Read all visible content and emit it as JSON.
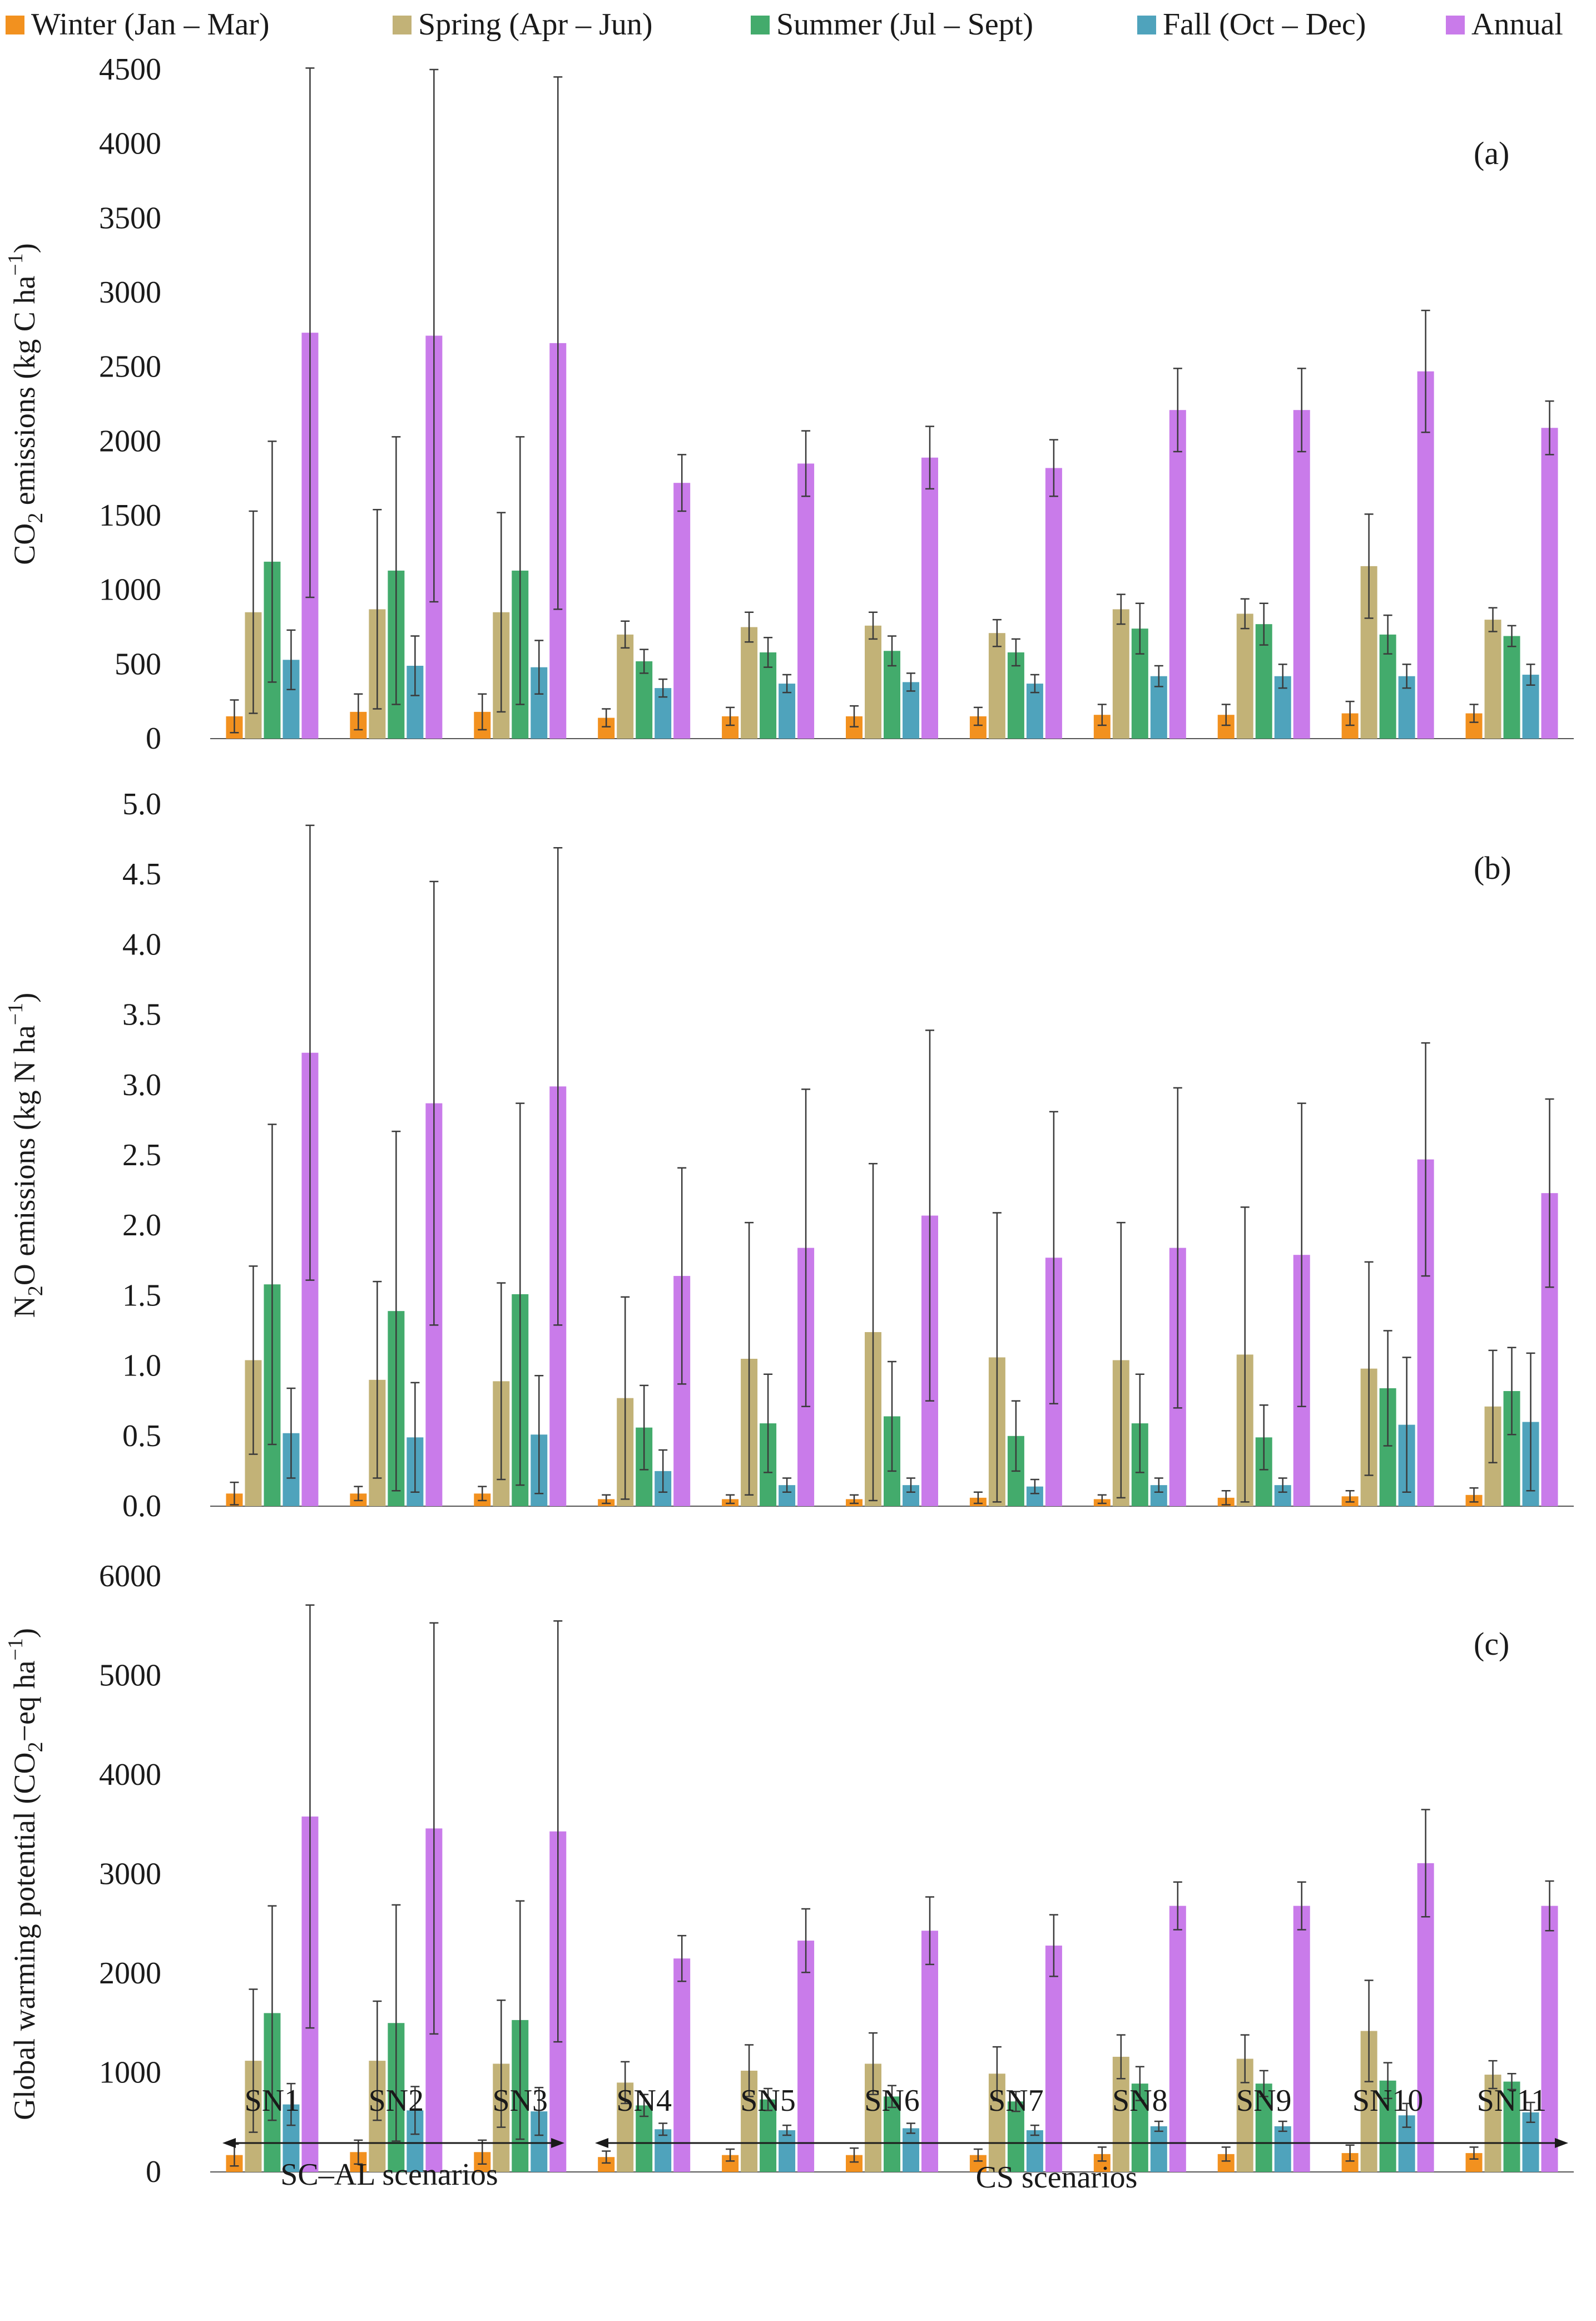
{
  "legend": [
    {
      "label": "Winter (Jan – Mar)",
      "color": "#F2911F"
    },
    {
      "label": "Spring (Apr – Jun)",
      "color": "#C2B277"
    },
    {
      "label": "Summer (Jul – Sept)",
      "color": "#43AB6C"
    },
    {
      "label": "Fall (Oct – Dec)",
      "color": "#4FA3BC"
    },
    {
      "label": "Annual",
      "color": "#C97BEA"
    }
  ],
  "groups": {
    "sc_al": {
      "label": "SC–AL scenarios",
      "first": 0,
      "last": 2
    },
    "cs": {
      "label": "CS scenarios",
      "first": 3,
      "last": 10
    }
  },
  "chart_data": [
    {
      "type": "bar",
      "panel_label": "(a)",
      "ylabel_parts": [
        {
          "text": "CO"
        },
        {
          "text": "2",
          "sub": true
        },
        {
          "text": " emissions (kg C ha"
        },
        {
          "text": "−1",
          "sup": true
        },
        {
          "text": ")"
        }
      ],
      "ylim": [
        0,
        4500
      ],
      "yticks": [
        {
          "v": 0,
          "label": "0"
        },
        {
          "v": 500,
          "label": "500"
        },
        {
          "v": 1000,
          "label": "1000"
        },
        {
          "v": 1500,
          "label": "1500"
        },
        {
          "v": 2000,
          "label": "2000"
        },
        {
          "v": 2500,
          "label": "2500"
        },
        {
          "v": 3000,
          "label": "3000"
        },
        {
          "v": 3500,
          "label": "3500"
        },
        {
          "v": 4000,
          "label": "4000"
        },
        {
          "v": 4500,
          "label": "4500"
        }
      ],
      "categories": [
        "SN1",
        "SN2",
        "SN3",
        "SN4",
        "SN5",
        "SN6",
        "SN7",
        "SN8",
        "SN9",
        "SN10",
        "SN11"
      ],
      "series": [
        {
          "name": "Winter (Jan – Mar)",
          "values": [
            150,
            180,
            180,
            140,
            150,
            150,
            150,
            160,
            160,
            170,
            170
          ],
          "errors": [
            110,
            120,
            120,
            60,
            60,
            70,
            60,
            70,
            70,
            80,
            60
          ]
        },
        {
          "name": "Spring (Apr – Jun)",
          "values": [
            850,
            870,
            850,
            700,
            750,
            760,
            710,
            870,
            840,
            1160,
            800
          ],
          "errors": [
            680,
            670,
            670,
            90,
            100,
            90,
            90,
            100,
            100,
            350,
            80
          ]
        },
        {
          "name": "Summer (Jul – Sept)",
          "values": [
            1190,
            1130,
            1130,
            520,
            580,
            590,
            580,
            740,
            770,
            700,
            690
          ],
          "errors": [
            810,
            900,
            900,
            80,
            100,
            100,
            90,
            170,
            140,
            130,
            70
          ]
        },
        {
          "name": "Fall (Oct – Dec)",
          "values": [
            530,
            490,
            480,
            340,
            370,
            380,
            370,
            420,
            420,
            420,
            430
          ],
          "errors": [
            200,
            200,
            180,
            60,
            60,
            60,
            60,
            70,
            80,
            80,
            70
          ]
        },
        {
          "name": "Annual",
          "values": [
            2730,
            2710,
            2660,
            1720,
            1850,
            1890,
            1820,
            2210,
            2210,
            2470,
            2090
          ],
          "errors": [
            1780,
            1790,
            1790,
            190,
            220,
            210,
            190,
            280,
            280,
            410,
            180
          ]
        }
      ]
    },
    {
      "type": "bar",
      "panel_label": "(b)",
      "ylabel_parts": [
        {
          "text": "N"
        },
        {
          "text": "2",
          "sub": true
        },
        {
          "text": "O emissions (kg N ha"
        },
        {
          "text": "−1",
          "sup": true
        },
        {
          "text": ")"
        }
      ],
      "ylim": [
        0,
        5
      ],
      "yticks": [
        {
          "v": 0,
          "label": "0.0"
        },
        {
          "v": 0.5,
          "label": "0.5"
        },
        {
          "v": 1,
          "label": "1.0"
        },
        {
          "v": 1.5,
          "label": "1.5"
        },
        {
          "v": 2,
          "label": "2.0"
        },
        {
          "v": 2.5,
          "label": "2.5"
        },
        {
          "v": 3,
          "label": "3.0"
        },
        {
          "v": 3.5,
          "label": "3.5"
        },
        {
          "v": 4,
          "label": "4.0"
        },
        {
          "v": 4.5,
          "label": "4.5"
        },
        {
          "v": 5,
          "label": "5.0"
        }
      ],
      "categories": [
        "SN1",
        "SN2",
        "SN3",
        "SN4",
        "SN5",
        "SN6",
        "SN7",
        "SN8",
        "SN9",
        "SN10",
        "SN11"
      ],
      "series": [
        {
          "name": "Winter (Jan – Mar)",
          "values": [
            0.09,
            0.09,
            0.09,
            0.05,
            0.05,
            0.05,
            0.06,
            0.05,
            0.06,
            0.07,
            0.08
          ],
          "errors": [
            0.08,
            0.05,
            0.05,
            0.03,
            0.03,
            0.03,
            0.04,
            0.03,
            0.05,
            0.04,
            0.05
          ]
        },
        {
          "name": "Spring (Apr – Jun)",
          "values": [
            1.04,
            0.9,
            0.89,
            0.77,
            1.05,
            1.24,
            1.06,
            1.04,
            1.08,
            0.98,
            0.71
          ],
          "errors": [
            0.67,
            0.7,
            0.7,
            0.72,
            0.97,
            1.2,
            1.03,
            0.98,
            1.05,
            0.76,
            0.4
          ]
        },
        {
          "name": "Summer (Jul – Sept)",
          "values": [
            1.58,
            1.39,
            1.51,
            0.56,
            0.59,
            0.64,
            0.5,
            0.59,
            0.49,
            0.84,
            0.82
          ],
          "errors": [
            1.14,
            1.28,
            1.36,
            0.3,
            0.35,
            0.39,
            0.25,
            0.35,
            0.23,
            0.41,
            0.31
          ]
        },
        {
          "name": "Fall (Oct – Dec)",
          "values": [
            0.52,
            0.49,
            0.51,
            0.25,
            0.15,
            0.15,
            0.14,
            0.15,
            0.15,
            0.58,
            0.6
          ],
          "errors": [
            0.32,
            0.39,
            0.42,
            0.15,
            0.05,
            0.05,
            0.05,
            0.05,
            0.05,
            0.48,
            0.49
          ]
        },
        {
          "name": "Annual",
          "values": [
            3.23,
            2.87,
            2.99,
            1.64,
            1.84,
            2.07,
            1.77,
            1.84,
            1.79,
            2.47,
            2.23
          ],
          "errors": [
            1.62,
            1.58,
            1.7,
            0.77,
            1.13,
            1.32,
            1.04,
            1.14,
            1.08,
            0.83,
            0.67
          ]
        }
      ]
    },
    {
      "type": "bar",
      "panel_label": "(c)",
      "ylabel_parts": [
        {
          "text": "Global warming potential (CO"
        },
        {
          "text": "2",
          "sub": true
        },
        {
          "text": "−eq ha"
        },
        {
          "text": "−1",
          "sup": true
        },
        {
          "text": ")"
        }
      ],
      "ylim": [
        0,
        6000
      ],
      "yticks": [
        {
          "v": 0,
          "label": "0"
        },
        {
          "v": 1000,
          "label": "1000"
        },
        {
          "v": 2000,
          "label": "2000"
        },
        {
          "v": 3000,
          "label": "3000"
        },
        {
          "v": 4000,
          "label": "4000"
        },
        {
          "v": 5000,
          "label": "5000"
        },
        {
          "v": 6000,
          "label": "6000"
        }
      ],
      "categories": [
        "SN1",
        "SN2",
        "SN3",
        "SN4",
        "SN5",
        "SN6",
        "SN7",
        "SN8",
        "SN9",
        "SN10",
        "SN11"
      ],
      "series": [
        {
          "name": "Winter (Jan – Mar)",
          "values": [
            170,
            200,
            200,
            150,
            170,
            170,
            170,
            180,
            180,
            190,
            190
          ],
          "errors": [
            110,
            120,
            120,
            60,
            60,
            70,
            60,
            70,
            70,
            80,
            60
          ]
        },
        {
          "name": "Spring (Apr – Jun)",
          "values": [
            1120,
            1120,
            1090,
            900,
            1020,
            1090,
            990,
            1160,
            1140,
            1420,
            980
          ],
          "errors": [
            720,
            600,
            640,
            210,
            260,
            310,
            270,
            220,
            240,
            510,
            140
          ]
        },
        {
          "name": "Summer (Jul – Sept)",
          "values": [
            1600,
            1500,
            1530,
            670,
            730,
            760,
            710,
            890,
            890,
            920,
            910
          ],
          "errors": [
            1080,
            1190,
            1200,
            110,
            110,
            110,
            100,
            170,
            130,
            180,
            80
          ]
        },
        {
          "name": "Fall (Oct – Dec)",
          "values": [
            680,
            620,
            610,
            430,
            420,
            440,
            420,
            460,
            460,
            570,
            600
          ],
          "errors": [
            210,
            240,
            240,
            60,
            50,
            50,
            50,
            50,
            50,
            120,
            100
          ]
        },
        {
          "name": "Annual",
          "values": [
            3580,
            3460,
            3430,
            2150,
            2330,
            2430,
            2280,
            2680,
            2680,
            3110,
            2680
          ],
          "errors": [
            2130,
            2070,
            2120,
            230,
            320,
            340,
            310,
            240,
            240,
            540,
            250
          ]
        }
      ]
    }
  ]
}
